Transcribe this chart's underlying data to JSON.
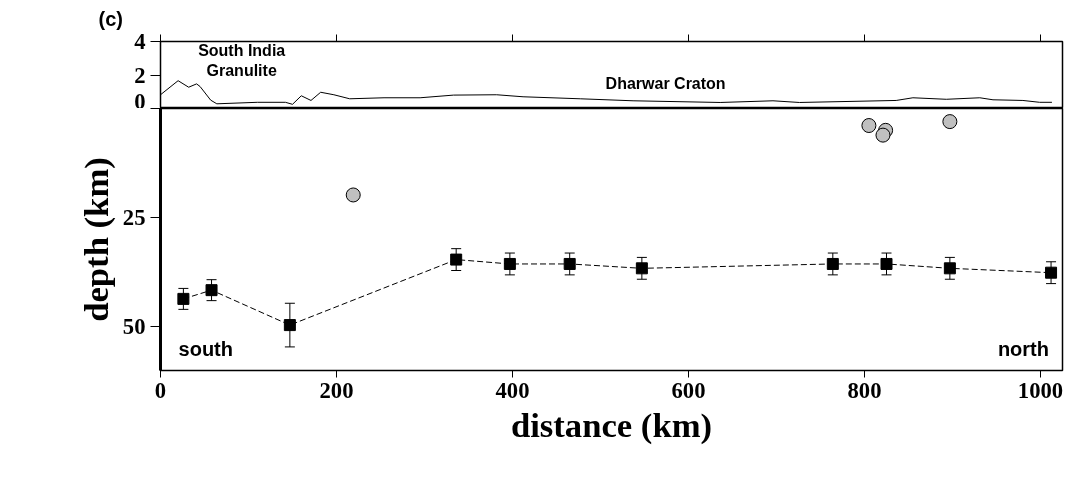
{
  "chart_data": [
    {
      "type": "line",
      "title": "(c)",
      "xlim": [
        0,
        1025
      ],
      "xticks": [
        0,
        200,
        400,
        600,
        800,
        1000
      ],
      "ylim": [
        0,
        4
      ],
      "yticks": [
        0,
        2,
        4
      ],
      "tick_labels": "y",
      "grid": false,
      "annotations": [
        "South India\nGranulite",
        "Dharwar Craton"
      ],
      "series": [
        {
          "color": "#000000",
          "line_style": "solid",
          "marker": "none",
          "x": [
            0,
            20,
            32,
            41,
            45,
            57,
            64,
            110,
            142,
            150,
            160,
            171,
            182,
            197,
            215,
            254,
            295,
            333,
            382,
            412,
            477,
            537,
            636,
            696,
            726,
            836,
            855,
            893,
            931,
            946,
            980,
            999,
            1013
          ],
          "values": [
            0.82,
            1.66,
            1.27,
            1.47,
            1.31,
            0.5,
            0.28,
            0.37,
            0.37,
            0.25,
            0.76,
            0.48,
            0.97,
            0.82,
            0.58,
            0.64,
            0.64,
            0.8,
            0.82,
            0.7,
            0.58,
            0.46,
            0.36,
            0.46,
            0.36,
            0.48,
            0.64,
            0.55,
            0.64,
            0.52,
            0.48,
            0.37,
            0.37
          ]
        }
      ]
    },
    {
      "type": "line",
      "xlabel": "distance (km)",
      "ylabel": "depth (km)",
      "xlim": [
        0,
        1025
      ],
      "xticks": [
        0,
        200,
        400,
        600,
        800,
        1000
      ],
      "ylim": [
        60,
        0
      ],
      "yticks": [
        {
          "value": 0,
          "label": null
        },
        25,
        50
      ],
      "grid": false,
      "annotations": [
        "south",
        "north"
      ],
      "series": [
        {
          "color": "#000000",
          "line_style": "dashed",
          "marker": "square",
          "x": [
            26,
            58,
            147,
            336,
            397,
            465,
            547,
            764,
            825,
            897,
            1012
          ],
          "values": [
            43.6,
            41.6,
            49.6,
            34.6,
            35.6,
            35.6,
            36.6,
            35.6,
            35.6,
            36.6,
            37.6
          ],
          "errors": [
            2.4,
            2.4,
            5,
            2.5,
            2.5,
            2.5,
            2.5,
            2.5,
            2.5,
            2.5,
            2.5
          ]
        },
        {
          "type": "scatter",
          "color": "#c0c0c0",
          "marker": "circle",
          "x": [
            219,
            805,
            824,
            821,
            897
          ],
          "values": [
            19.8,
            3.9,
            5.0,
            6.1,
            3.0
          ]
        }
      ]
    }
  ]
}
